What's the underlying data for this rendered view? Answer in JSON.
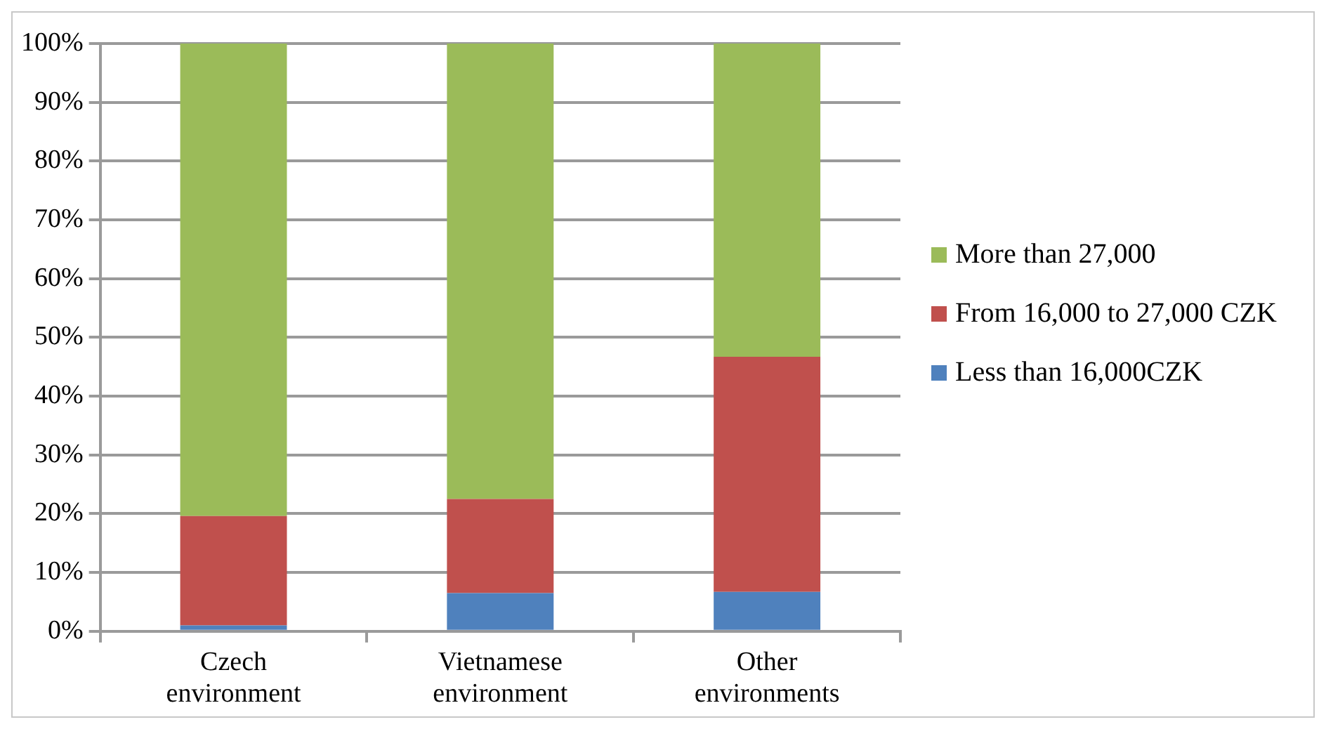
{
  "chart_data": {
    "type": "bar",
    "stacked": true,
    "categories": [
      "Czech environment",
      "Vietnamese environment",
      "Other environments"
    ],
    "series": [
      {
        "name": "Less than 16,000CZK",
        "color": "#4f81bd",
        "values": [
          1,
          6.5,
          6.7
        ]
      },
      {
        "name": "From 16,000 to 27,000 CZK",
        "color": "#c0504d",
        "values": [
          18.6,
          16,
          40
        ]
      },
      {
        "name": "More than 27,000",
        "color": "#9bbb59",
        "values": [
          80.4,
          77.5,
          53.3
        ]
      }
    ],
    "ylim": [
      0,
      100
    ],
    "yticks": [
      {
        "value": 0,
        "label": "0%"
      },
      {
        "value": 10,
        "label": "10%"
      },
      {
        "value": 20,
        "label": "20%"
      },
      {
        "value": 30,
        "label": "30%"
      },
      {
        "value": 40,
        "label": "40%"
      },
      {
        "value": 50,
        "label": "50%"
      },
      {
        "value": 60,
        "label": "60%"
      },
      {
        "value": 70,
        "label": "70%"
      },
      {
        "value": 80,
        "label": "80%"
      },
      {
        "value": 90,
        "label": "90%"
      },
      {
        "value": 100,
        "label": "100%"
      }
    ],
    "grid": "y",
    "legend": "right"
  }
}
